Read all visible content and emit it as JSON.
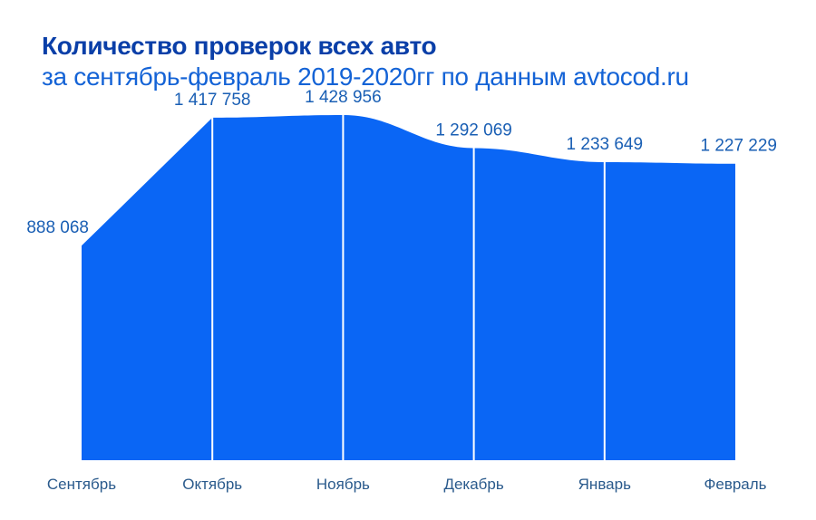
{
  "colors": {
    "area": "#0a66f5",
    "title": "#0a3fa8",
    "subtitle": "#1463d6",
    "value_label": "#1a5fb4",
    "category_label": "#2a5a8c",
    "separator": "#ffffff"
  },
  "chart_data": {
    "type": "area",
    "title": "Количество проверок всех авто",
    "subtitle": "за сентябрь-февраль 2019-2020гг по данным avtocod.ru",
    "categories": [
      "Сентябрь",
      "Октябрь",
      "Ноябрь",
      "Декабрь",
      "Январь",
      "Февраль"
    ],
    "values": [
      888068,
      1417758,
      1428956,
      1292069,
      1233649,
      1227229
    ],
    "value_labels": [
      "888 068",
      "1 417 758",
      "1 428 956",
      "1 292 069",
      "1 233 649",
      "1 227 229"
    ],
    "xlabel": "",
    "ylabel": "",
    "ylim": [
      0,
      1500000
    ],
    "grid": false,
    "legend": "none"
  }
}
